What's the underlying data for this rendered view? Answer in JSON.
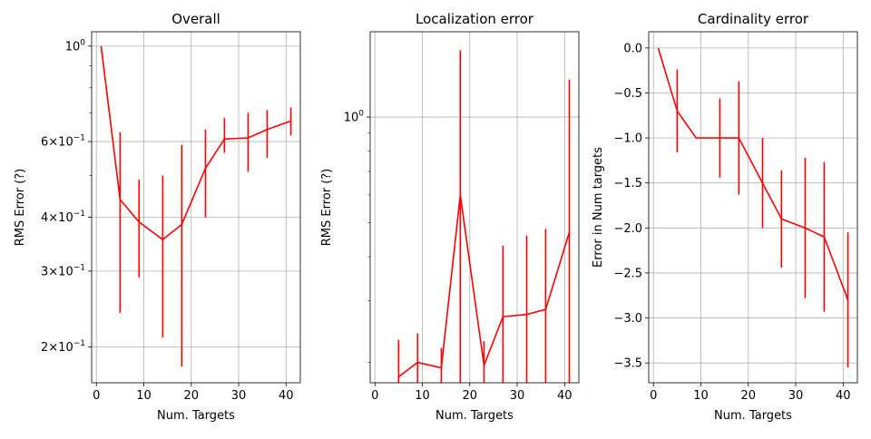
{
  "chart_data": [
    {
      "type": "line",
      "title": "Overall",
      "xlabel": "Num. Targets",
      "ylabel": "RMS Error (?)",
      "yscale": "log",
      "xlim": [
        -1,
        43
      ],
      "ylim": [
        0.165,
        1.08
      ],
      "xticks": [
        0,
        10,
        20,
        30,
        40
      ],
      "xtick_labels": [
        "0",
        "10",
        "20",
        "30",
        "40"
      ],
      "yticks": [
        0.2,
        0.3,
        0.4,
        0.6,
        1.0
      ],
      "ytick_labels": [
        {
          "base": "2",
          "times": "×",
          "exp_base": "10",
          "exp": "−1"
        },
        {
          "base": "3",
          "times": "×",
          "exp_base": "10",
          "exp": "−1"
        },
        {
          "base": "4",
          "times": "×",
          "exp_base": "10",
          "exp": "−1"
        },
        {
          "base": "6",
          "times": "×",
          "exp_base": "10",
          "exp": "−1"
        },
        {
          "base": "",
          "times": "",
          "exp_base": "10",
          "exp": "0"
        }
      ],
      "minor_yticks": [
        0.5,
        0.7,
        0.8,
        0.9
      ],
      "grid": true,
      "color": "#ff0000",
      "series": [
        {
          "x": [
            1,
            5,
            9,
            14,
            18,
            23,
            27,
            32,
            36,
            41
          ],
          "y": [
            1.0,
            0.44,
            0.39,
            0.355,
            0.385,
            0.52,
            0.608,
            0.612,
            0.64,
            0.67
          ],
          "err_low": [
            null,
            0.24,
            0.29,
            0.21,
            0.18,
            0.4,
            0.565,
            0.51,
            0.55,
            0.62
          ],
          "err_high": [
            null,
            0.63,
            0.49,
            0.5,
            0.59,
            0.64,
            0.68,
            0.7,
            0.71,
            0.72
          ]
        }
      ]
    },
    {
      "type": "line",
      "title": "Localization error",
      "xlabel": "Num. Targets",
      "ylabel": "RMS Error (?)",
      "yscale": "log",
      "xlim": [
        -1,
        43
      ],
      "ylim": [
        0.175,
        1.75
      ],
      "xticks": [
        0,
        10,
        20,
        30,
        40
      ],
      "xtick_labels": [
        "0",
        "10",
        "20",
        "30",
        "40"
      ],
      "yticks": [
        1.0
      ],
      "ytick_labels": [
        {
          "base": "",
          "times": "",
          "exp_base": "10",
          "exp": "0"
        }
      ],
      "minor_yticks": [
        0.2,
        0.3,
        0.4,
        0.5,
        0.6,
        0.7,
        0.8,
        0.9
      ],
      "grid": true,
      "color": "#ff0000",
      "series": [
        {
          "x": [
            5,
            9,
            14,
            18,
            23,
            27,
            32,
            36,
            41
          ],
          "y": [
            0.182,
            0.2,
            0.193,
            0.6,
            0.196,
            0.27,
            0.274,
            0.283,
            0.47
          ],
          "err_low": [
            0.1,
            0.1,
            0.1,
            0.1,
            0.1,
            0.1,
            0.1,
            0.1,
            0.1
          ],
          "err_high": [
            0.232,
            0.242,
            0.22,
            1.55,
            0.23,
            0.43,
            0.46,
            0.48,
            1.28
          ]
        }
      ]
    },
    {
      "type": "line",
      "title": "Cardinality error",
      "xlabel": "Num. Targets",
      "ylabel": "Error in Num targets",
      "yscale": "linear",
      "xlim": [
        -1,
        43
      ],
      "ylim": [
        -3.72,
        0.18
      ],
      "xticks": [
        0,
        10,
        20,
        30,
        40
      ],
      "xtick_labels": [
        "0",
        "10",
        "20",
        "30",
        "40"
      ],
      "yticks": [
        0.0,
        -0.5,
        -1.0,
        -1.5,
        -2.0,
        -2.5,
        -3.0,
        -3.5
      ],
      "ytick_labels": [
        "0.0",
        "−0.5",
        "−1.0",
        "−1.5",
        "−2.0",
        "−2.5",
        "−3.0",
        "−3.5"
      ],
      "grid": true,
      "color": "#ff0000",
      "series": [
        {
          "x": [
            1,
            5,
            9,
            14,
            18,
            23,
            27,
            32,
            36,
            41
          ],
          "y": [
            0.0,
            -0.7,
            -1.0,
            -1.0,
            -1.0,
            -1.5,
            -1.9,
            -2.0,
            -2.1,
            -2.8
          ],
          "err_low": [
            null,
            -1.16,
            null,
            -1.44,
            -1.63,
            -2.0,
            -2.44,
            -2.78,
            -2.93,
            -3.55
          ],
          "err_high": [
            null,
            -0.24,
            null,
            -0.56,
            -0.37,
            -1.0,
            -1.36,
            -1.22,
            -1.27,
            -2.05
          ]
        }
      ]
    }
  ]
}
